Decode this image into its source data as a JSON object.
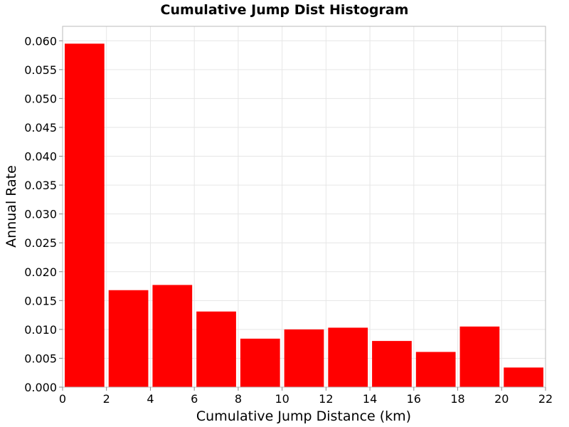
{
  "chart_data": {
    "type": "bar",
    "title": "Cumulative Jump Dist Histogram",
    "xlabel": "Cumulative Jump Distance (km)",
    "ylabel": "Annual Rate",
    "xlim": [
      0,
      22
    ],
    "ylim": [
      0,
      0.0625
    ],
    "x_ticks": [
      "0",
      "2",
      "4",
      "6",
      "8",
      "10",
      "12",
      "14",
      "16",
      "18",
      "20",
      "22"
    ],
    "y_ticks": [
      "0.000",
      "0.005",
      "0.010",
      "0.015",
      "0.020",
      "0.025",
      "0.030",
      "0.035",
      "0.040",
      "0.045",
      "0.050",
      "0.055",
      "0.060"
    ],
    "grid": true,
    "bar_color": "#ff0000",
    "bars": [
      {
        "x_start": 0,
        "x_end": 2,
        "value": 0.0595
      },
      {
        "x_start": 2,
        "x_end": 4,
        "value": 0.0168
      },
      {
        "x_start": 4,
        "x_end": 6,
        "value": 0.0177
      },
      {
        "x_start": 6,
        "x_end": 8,
        "value": 0.0131
      },
      {
        "x_start": 8,
        "x_end": 10,
        "value": 0.0084
      },
      {
        "x_start": 10,
        "x_end": 12,
        "value": 0.01
      },
      {
        "x_start": 12,
        "x_end": 14,
        "value": 0.0103
      },
      {
        "x_start": 14,
        "x_end": 16,
        "value": 0.008
      },
      {
        "x_start": 16,
        "x_end": 18,
        "value": 0.0061
      },
      {
        "x_start": 18,
        "x_end": 20,
        "value": 0.0105
      },
      {
        "x_start": 20,
        "x_end": 22,
        "value": 0.0034
      }
    ]
  }
}
